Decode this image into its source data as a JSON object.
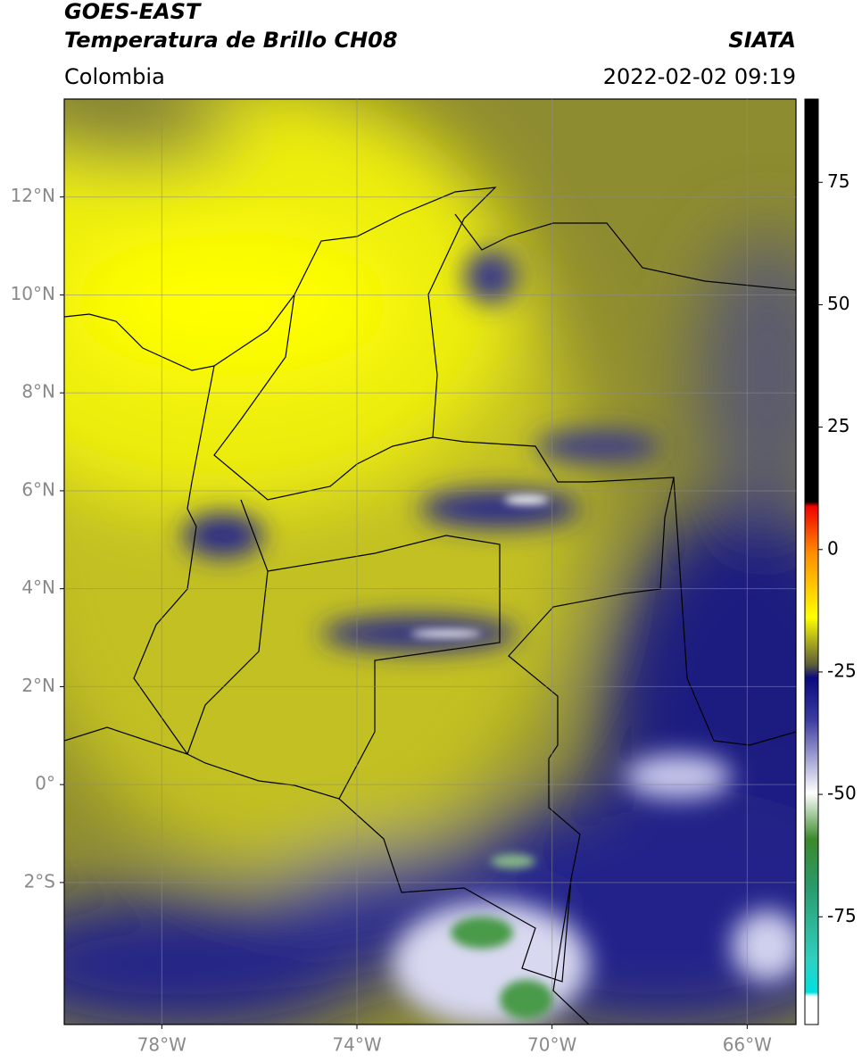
{
  "header": {
    "title": "GOES-EAST",
    "subtitle": "Temperatura de Brillo CH08",
    "source": "SIATA",
    "region": "Colombia",
    "datetime": "2022-02-02 09:19"
  },
  "map": {
    "xlim": [
      -80,
      -65
    ],
    "ylim": [
      -4.9,
      14
    ],
    "xticks": [
      {
        "value": -78,
        "label": "78°W"
      },
      {
        "value": -74,
        "label": "74°W"
      },
      {
        "value": -70,
        "label": "70°W"
      },
      {
        "value": -66,
        "label": "66°W"
      }
    ],
    "yticks": [
      {
        "value": 12,
        "label": "12°N"
      },
      {
        "value": 10,
        "label": "10°N"
      },
      {
        "value": 8,
        "label": "8°N"
      },
      {
        "value": 6,
        "label": "6°N"
      },
      {
        "value": 4,
        "label": "4°N"
      },
      {
        "value": 2,
        "label": "2°N"
      },
      {
        "value": 0,
        "label": "0°"
      },
      {
        "value": -2,
        "label": "2°S"
      }
    ],
    "grid": true
  },
  "colorbar": {
    "lim": [
      -97,
      92
    ],
    "ticks": [
      75,
      50,
      25,
      0,
      -25,
      -50,
      -75
    ]
  }
}
